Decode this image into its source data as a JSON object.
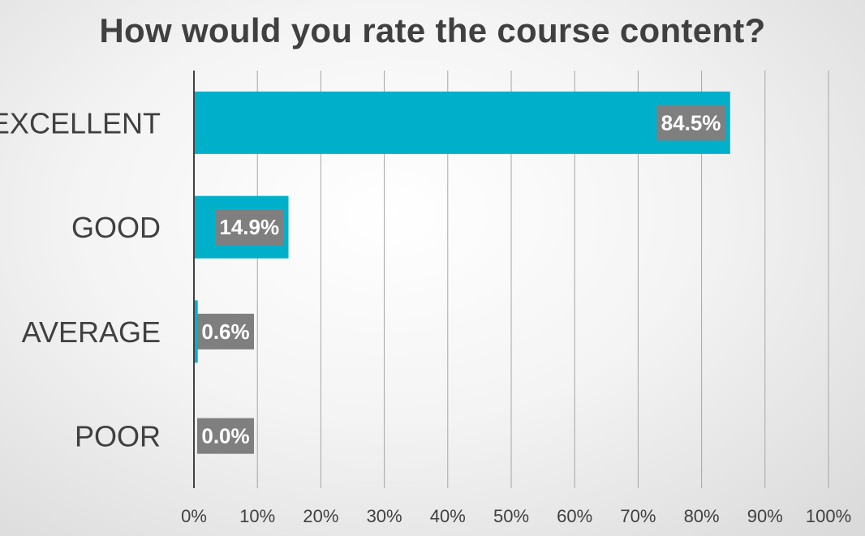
{
  "chart_data": {
    "type": "bar",
    "orientation": "horizontal",
    "title": "How would you rate the course content?",
    "categories": [
      "EXCELLENT",
      "GOOD",
      "AVERAGE",
      "POOR"
    ],
    "values": [
      84.5,
      14.9,
      0.6,
      0.0
    ],
    "data_labels": [
      "84.5%",
      "14.9%",
      "0.6%",
      "0.0%"
    ],
    "xlim": [
      0,
      100
    ],
    "x_ticks": [
      "0%",
      "10%",
      "20%",
      "30%",
      "40%",
      "50%",
      "60%",
      "70%",
      "80%",
      "90%",
      "100%"
    ],
    "grid": true,
    "legend": "none",
    "colors": {
      "bar": "#00B0CB",
      "label_box": "#7F7F7F",
      "gridline": "#A6A6A6",
      "axis": "#404040",
      "text": "#404040"
    }
  }
}
